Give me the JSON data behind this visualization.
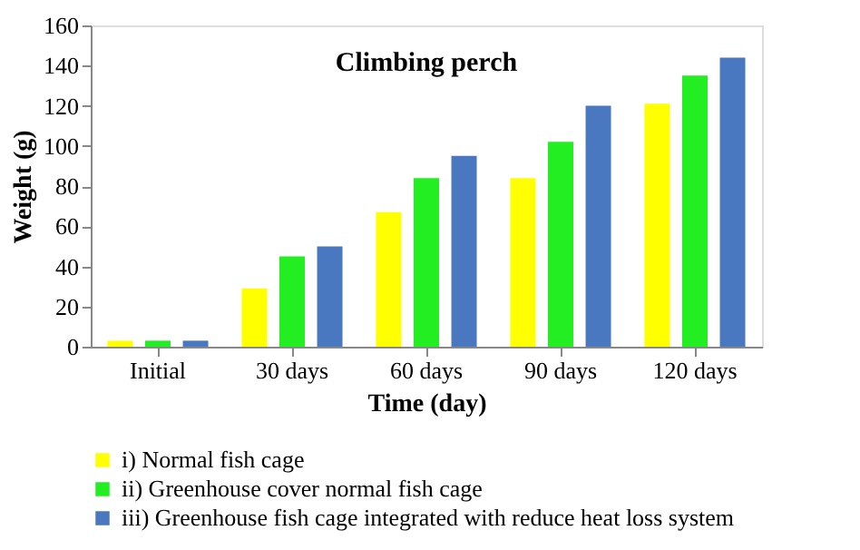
{
  "chart_data": {
    "type": "bar",
    "title": "Climbing perch",
    "xlabel": "Time (day)",
    "ylabel": "Weight (g)",
    "categories": [
      "Initial",
      "30 days",
      "60 days",
      "90 days",
      "120 days"
    ],
    "series": [
      {
        "name": "i) Normal fish cage",
        "color": "#ffff00",
        "values": [
          3,
          29,
          67,
          84,
          121
        ]
      },
      {
        "name": "ii) Greenhouse cover normal fish cage",
        "color": "#22ee22",
        "values": [
          3,
          45,
          84,
          102,
          135
        ]
      },
      {
        "name": "iii) Greenhouse fish cage integrated with reduce heat loss system",
        "color": "#4a78c0",
        "values": [
          3,
          50,
          95,
          120,
          144
        ]
      }
    ],
    "ylim": [
      0,
      160
    ],
    "yticks": [
      0,
      20,
      40,
      60,
      80,
      100,
      120,
      140,
      160
    ],
    "grid": false,
    "legend": "bottom"
  }
}
